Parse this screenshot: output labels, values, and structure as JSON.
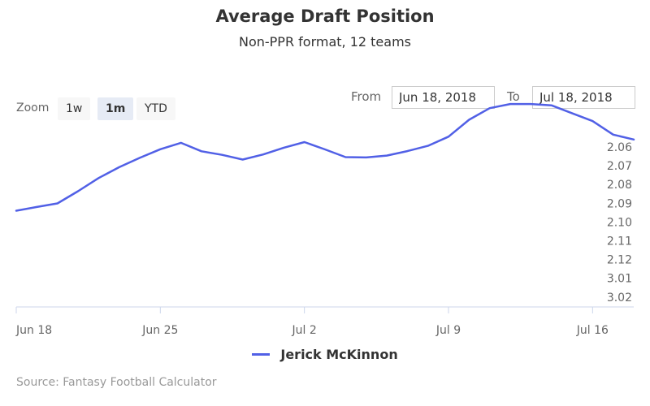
{
  "header": {
    "title": "Average Draft Position",
    "subtitle": "Non-PPR format, 12 teams"
  },
  "zoom": {
    "label": "Zoom",
    "buttons": [
      "1w",
      "1m",
      "YTD"
    ],
    "active": "1m"
  },
  "range": {
    "from_label": "From",
    "from_value": "Jun 18, 2018",
    "to_label": "To",
    "to_value": "Jul 18, 2018"
  },
  "legend": {
    "series_name": "Jerick McKinnon",
    "color": "#5160e6"
  },
  "source": "Source: Fantasy Football Calculator",
  "chart_data": {
    "type": "line",
    "title": "Average Draft Position",
    "subtitle": "Non-PPR format, 12 teams",
    "x_axis": {
      "range": [
        "2018-06-18",
        "2018-07-18"
      ],
      "ticks": [
        {
          "date": "2018-06-18",
          "label": "Jun 18"
        },
        {
          "date": "2018-06-25",
          "label": "Jun 25"
        },
        {
          "date": "2018-07-02",
          "label": "Jul 2"
        },
        {
          "date": "2018-07-09",
          "label": "Jul 9"
        },
        {
          "date": "2018-07-16",
          "label": "Jul 16"
        }
      ]
    },
    "y_axis": {
      "categories": [
        "2.06",
        "2.07",
        "2.08",
        "2.09",
        "2.10",
        "2.11",
        "2.12",
        "3.01",
        "3.02"
      ],
      "reversed": true,
      "position": "right",
      "grid": false
    },
    "series": [
      {
        "name": "Jerick McKinnon",
        "color": "#5160e6",
        "points": [
          {
            "x": "2018-06-18",
            "y": 3.4
          },
          {
            "x": "2018-06-19",
            "y": 3.2
          },
          {
            "x": "2018-06-20",
            "y": 3.01
          },
          {
            "x": "2018-06-21",
            "y": 2.36
          },
          {
            "x": "2018-06-22",
            "y": 1.66
          },
          {
            "x": "2018-06-23",
            "y": 1.08
          },
          {
            "x": "2018-06-24",
            "y": 0.58
          },
          {
            "x": "2018-06-25",
            "y": 0.12
          },
          {
            "x": "2018-06-26",
            "y": -0.22
          },
          {
            "x": "2018-06-27",
            "y": 0.23
          },
          {
            "x": "2018-06-28",
            "y": 0.42
          },
          {
            "x": "2018-06-29",
            "y": 0.67
          },
          {
            "x": "2018-06-30",
            "y": 0.4
          },
          {
            "x": "2018-07-01",
            "y": 0.04
          },
          {
            "x": "2018-07-02",
            "y": -0.26
          },
          {
            "x": "2018-07-03",
            "y": 0.13
          },
          {
            "x": "2018-07-04",
            "y": 0.54
          },
          {
            "x": "2018-07-05",
            "y": 0.56
          },
          {
            "x": "2018-07-06",
            "y": 0.46
          },
          {
            "x": "2018-07-07",
            "y": 0.22
          },
          {
            "x": "2018-07-08",
            "y": -0.06
          },
          {
            "x": "2018-07-09",
            "y": -0.55
          },
          {
            "x": "2018-07-10",
            "y": -1.45
          },
          {
            "x": "2018-07-11",
            "y": -2.07
          },
          {
            "x": "2018-07-12",
            "y": -2.29
          },
          {
            "x": "2018-07-13",
            "y": -2.29
          },
          {
            "x": "2018-07-14",
            "y": -2.22
          },
          {
            "x": "2018-07-15",
            "y": -1.8
          },
          {
            "x": "2018-07-16",
            "y": -1.38
          },
          {
            "x": "2018-07-17",
            "y": -0.66
          },
          {
            "x": "2018-07-18",
            "y": -0.4
          }
        ]
      }
    ],
    "legend": "bottom-center"
  }
}
